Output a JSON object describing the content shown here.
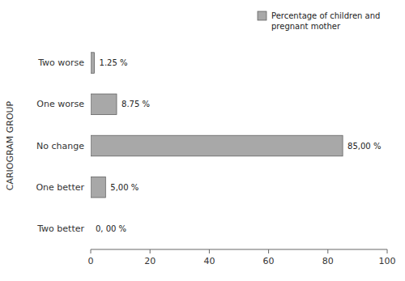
{
  "chart_data": {
    "type": "bar",
    "orientation": "horizontal",
    "categories": [
      "Two better",
      "One better",
      "No change",
      "One worse",
      "Two worse"
    ],
    "series": [
      {
        "name": "Percentage of children and\npregnant mother",
        "color": "#a8a8a8",
        "values": [
          0.0,
          5.0,
          85.0,
          8.75,
          1.25
        ],
        "value_labels": [
          "0, 00 %",
          "5,00 %",
          "85,00 %",
          "8.75 %",
          "1.25 %"
        ]
      }
    ],
    "ylabel": "CARIOGRAM GROUP",
    "xlim": [
      0,
      100
    ],
    "xticks": [
      0,
      20,
      40,
      60,
      80,
      100
    ],
    "grid": false,
    "legend": "upper right",
    "data_labels": true
  }
}
